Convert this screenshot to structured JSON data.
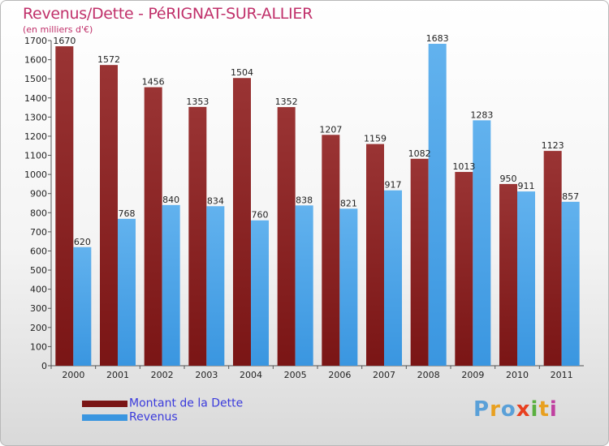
{
  "title": "Revenus/Dette - PéRIGNAT-SUR-ALLIER",
  "subtitle": "(en milliers d'€)",
  "logo": {
    "text": "Proxiti",
    "colors": [
      "#5aa0d8",
      "#e8a020",
      "#5aa0d8",
      "#e84020",
      "#5ab040",
      "#e8a020",
      "#c040a0"
    ]
  },
  "colors": {
    "debt": "#7a1515",
    "debt_light": "#9a3434",
    "revenue": "#3a96e0",
    "revenue_light": "#62b2ee",
    "axis": "#555555"
  },
  "chart_data": {
    "type": "bar",
    "title": "Revenus/Dette - PéRIGNAT-SUR-ALLIER",
    "ylabel": "(en milliers d'€)",
    "xlabel": "",
    "ylim": [
      0,
      1700
    ],
    "yticks": [
      0,
      100,
      200,
      300,
      400,
      500,
      600,
      700,
      800,
      900,
      1000,
      1100,
      1200,
      1300,
      1400,
      1500,
      1600,
      1700
    ],
    "categories": [
      "2000",
      "2001",
      "2002",
      "2003",
      "2004",
      "2005",
      "2006",
      "2007",
      "2008",
      "2009",
      "2010",
      "2011"
    ],
    "series": [
      {
        "name": "Montant de la Dette",
        "values": [
          1670,
          1572,
          1456,
          1353,
          1504,
          1352,
          1207,
          1159,
          1082,
          1013,
          950,
          1123
        ]
      },
      {
        "name": "Revenus",
        "values": [
          620,
          768,
          840,
          834,
          760,
          838,
          821,
          917,
          1683,
          1283,
          911,
          857
        ]
      }
    ],
    "legend_position": "bottom-left"
  }
}
